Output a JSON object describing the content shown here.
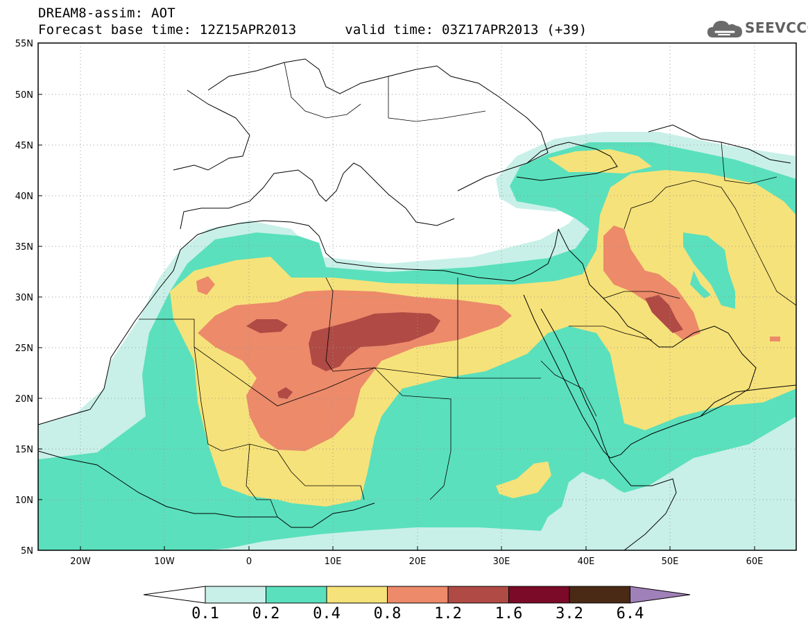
{
  "header": {
    "title": "DREAM8-assim: AOT",
    "subtitle": "Forecast base time: 12Z15APR2013      valid time: 03Z17APR2013 (+39)"
  },
  "logo": {
    "text": "SEEVCCC",
    "icon": "cloud-icon"
  },
  "map": {
    "projection": "lat-lon",
    "lon_range": [
      -25,
      65
    ],
    "lat_range": [
      5,
      55
    ],
    "y_tick_labels": [
      "55N",
      "50N",
      "45N",
      "40N",
      "35N",
      "30N",
      "25N",
      "20N",
      "15N",
      "10N",
      "5N"
    ],
    "x_tick_labels": [
      "20W",
      "10W",
      "0",
      "10E",
      "20E",
      "30E",
      "40E",
      "50E",
      "60E"
    ],
    "grid": "dotted",
    "field": "Aerosol Optical Thickness",
    "regions": [
      {
        "level": "0.1-0.2",
        "area": "outer fringe: Atlantic coast, Eastern Med, Arabian Sea"
      },
      {
        "level": "0.2-0.4",
        "area": "West Africa, Sahel, Red Sea, Black Sea band"
      },
      {
        "level": "0.4-0.8",
        "area": "Sahara, Arabia, Caspian-Iran"
      },
      {
        "level": "0.8-1.2",
        "area": "Central Sahara (Algeria-Libya-Niger), Iraq"
      },
      {
        "level": "1.2-1.6",
        "area": "Libya, Algeria cores, Mesopotamia"
      }
    ]
  },
  "colorbar": {
    "labels": [
      "0.1",
      "0.2",
      "0.4",
      "0.8",
      "1.2",
      "1.6",
      "3.2",
      "6.4"
    ],
    "colors": [
      "#ffffff",
      "#c8f0e8",
      "#5ae0bc",
      "#f6e27a",
      "#ec8a6a",
      "#b04a44",
      "#7a0a28",
      "#4a2a14",
      "#a080b8"
    ]
  }
}
